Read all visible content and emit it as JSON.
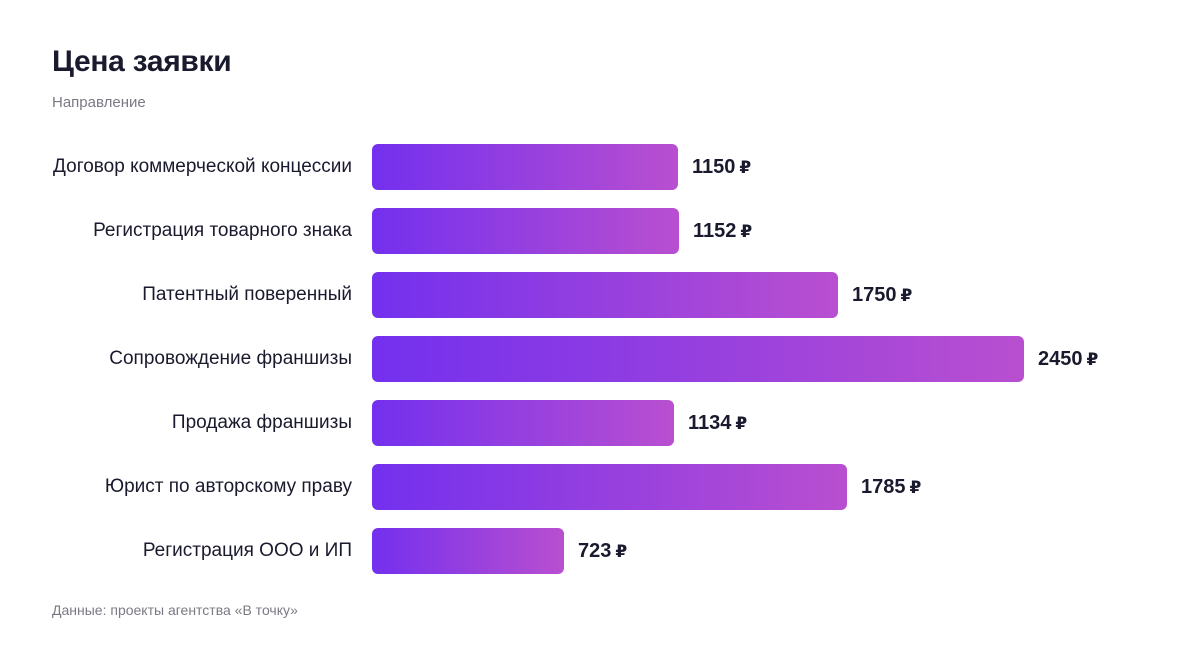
{
  "chart_data": {
    "type": "bar",
    "orientation": "horizontal",
    "title": "Цена заявки",
    "subtitle": "Направление",
    "source": "Данные: проекты агентства «В точку»",
    "currency_symbol": "₽",
    "categories": [
      "Договор коммерческой концессии",
      "Регистрация товарного знака",
      "Патентный поверенный",
      "Сопровождение франшизы",
      "Продажа франшизы",
      "Юрист по авторскому праву",
      "Регистрация ООО и ИП"
    ],
    "values": [
      1150,
      1152,
      1750,
      2450,
      1134,
      1785,
      723
    ],
    "xlim": [
      0,
      2450
    ],
    "grid": false,
    "legend": "none",
    "colors": {
      "bar_start": "#7330ee",
      "bar_end": "#b94fd0",
      "text": "#1a1a2e",
      "muted": "#7a7a85"
    }
  }
}
